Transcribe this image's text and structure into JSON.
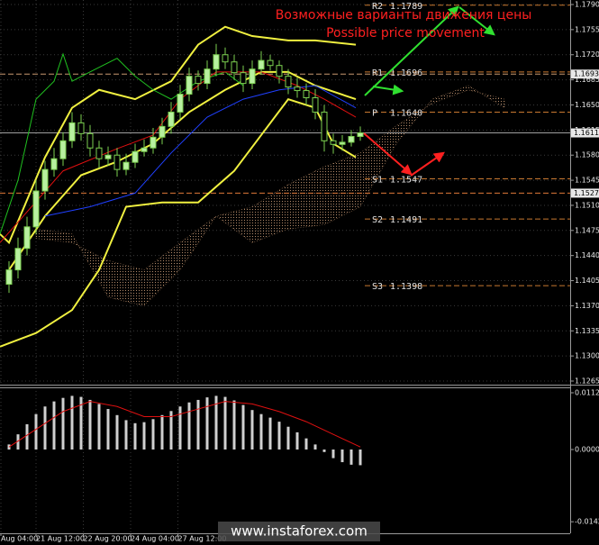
{
  "chart_data": [
    {
      "type": "candlestick",
      "title": "Возможные варианты движения цены",
      "subtitle": "Possible price movement",
      "xlim": [
        -1,
        62.3
      ],
      "ylim": [
        1.12625,
        1.17963
      ],
      "yticks": [
        {
          "value": 1.179,
          "label": "1.1790"
        },
        {
          "value": 1.1755,
          "label": "1.1755"
        },
        {
          "value": 1.172,
          "label": "1.1720"
        },
        {
          "value": 1.1685,
          "label": "1.1685"
        },
        {
          "value": 1.165,
          "label": "1.1650"
        },
        {
          "value": 1.1615,
          "label": "1.1615"
        },
        {
          "value": 1.158,
          "label": "1.1580"
        },
        {
          "value": 1.1545,
          "label": "1.1545"
        },
        {
          "value": 1.151,
          "label": "1.1510"
        },
        {
          "value": 1.1475,
          "label": "1.1475"
        },
        {
          "value": 1.144,
          "label": "1.1440"
        },
        {
          "value": 1.1405,
          "label": "1.1405"
        },
        {
          "value": 1.137,
          "label": "1.1370"
        },
        {
          "value": 1.1335,
          "label": "1.1335"
        },
        {
          "value": 1.13,
          "label": "1.1300"
        },
        {
          "value": 1.1265,
          "label": "1.1265"
        }
      ],
      "grid": true,
      "up_color": "#b8f0a0",
      "down_color": "#000000",
      "wick_color": "#7cd050",
      "open": [
        1.14,
        1.142,
        1.145,
        1.148,
        1.153,
        1.156,
        1.1575,
        1.16,
        1.1625,
        1.161,
        1.159,
        1.1575,
        1.158,
        1.156,
        1.157,
        1.1585,
        1.159,
        1.1605,
        1.162,
        1.164,
        1.1665,
        1.169,
        1.168,
        1.17,
        1.172,
        1.171,
        1.1695,
        1.168,
        1.17,
        1.1712,
        1.1705,
        1.169,
        1.1675,
        1.167,
        1.166,
        1.164,
        1.16,
        1.1595,
        1.1598,
        1.1606
      ],
      "high": [
        1.1432,
        1.1465,
        1.1494,
        1.1545,
        1.1572,
        1.159,
        1.1612,
        1.164,
        1.1637,
        1.1622,
        1.16,
        1.1592,
        1.159,
        1.1582,
        1.1596,
        1.1602,
        1.1618,
        1.1632,
        1.1654,
        1.1678,
        1.1702,
        1.1698,
        1.1712,
        1.1735,
        1.173,
        1.172,
        1.1705,
        1.1712,
        1.1725,
        1.172,
        1.1712,
        1.17,
        1.1688,
        1.168,
        1.1672,
        1.165,
        1.161,
        1.1608,
        1.1615,
        1.162
      ],
      "low": [
        1.1388,
        1.1408,
        1.144,
        1.147,
        1.1518,
        1.155,
        1.1565,
        1.159,
        1.16,
        1.1578,
        1.1562,
        1.1565,
        1.155,
        1.1552,
        1.1562,
        1.1578,
        1.1582,
        1.1595,
        1.161,
        1.163,
        1.1655,
        1.167,
        1.1672,
        1.169,
        1.17,
        1.1685,
        1.1668,
        1.1672,
        1.1692,
        1.1698,
        1.168,
        1.1665,
        1.166,
        1.165,
        1.163,
        1.1585,
        1.1582,
        1.1586,
        1.1592,
        1.16
      ],
      "close": [
        1.142,
        1.145,
        1.148,
        1.153,
        1.156,
        1.1575,
        1.16,
        1.1625,
        1.161,
        1.159,
        1.1575,
        1.158,
        1.156,
        1.157,
        1.1585,
        1.159,
        1.1605,
        1.162,
        1.164,
        1.1665,
        1.169,
        1.168,
        1.17,
        1.172,
        1.171,
        1.1695,
        1.168,
        1.17,
        1.1712,
        1.1705,
        1.169,
        1.1675,
        1.167,
        1.166,
        1.164,
        1.16,
        1.1595,
        1.1598,
        1.1606,
        1.1611
      ],
      "cloud": {
        "color": "#a07858",
        "x": [
          3,
          7,
          11,
          15,
          19,
          23,
          27,
          31,
          35,
          39,
          43,
          47,
          51,
          55
        ],
        "span_a": [
          1.1464,
          1.1458,
          1.1433,
          1.142,
          1.1458,
          1.1495,
          1.1508,
          1.1539,
          1.1564,
          1.1583,
          1.1621,
          1.1652,
          1.1671,
          1.1658
        ],
        "span_b": [
          1.1477,
          1.147,
          1.1382,
          1.137,
          1.142,
          1.1495,
          1.1458,
          1.1477,
          1.1483,
          1.1508,
          1.1596,
          1.1658,
          1.1677,
          1.1646
        ]
      },
      "series": [
        {
          "color": "#f0f040",
          "width": 2,
          "x": [
            -1,
            0,
            4,
            7,
            10,
            14,
            18,
            21,
            24,
            27,
            31,
            34,
            38.5
          ],
          "values": [
            1.147,
            1.1458,
            1.1577,
            1.1646,
            1.1671,
            1.1658,
            1.1683,
            1.1734,
            1.1759,
            1.1746,
            1.174,
            1.174,
            1.1734
          ]
        },
        {
          "color": "#f0f040",
          "width": 2,
          "x": [
            0,
            4,
            8,
            12,
            16,
            20,
            24,
            28,
            31,
            34,
            38.5
          ],
          "values": [
            1.142,
            1.1495,
            1.1552,
            1.1571,
            1.1596,
            1.164,
            1.1671,
            1.1696,
            1.1696,
            1.1677,
            1.1658
          ]
        },
        {
          "color": "#f0f040",
          "width": 2,
          "x": [
            -1,
            3,
            7,
            10,
            13,
            17,
            21,
            25,
            28,
            31,
            34,
            36,
            38.5
          ],
          "values": [
            1.1313,
            1.1332,
            1.1364,
            1.142,
            1.1508,
            1.1514,
            1.1514,
            1.1558,
            1.1608,
            1.1658,
            1.1646,
            1.1596,
            1.1577
          ]
        },
        {
          "color": "#20c020",
          "width": 1,
          "x": [
            -1,
            1,
            3,
            5,
            6,
            7,
            9,
            12,
            14,
            16,
            18,
            21,
            24,
            26
          ],
          "values": [
            1.147,
            1.1545,
            1.1658,
            1.1683,
            1.1721,
            1.1683,
            1.1696,
            1.1715,
            1.169,
            1.1671,
            1.1658,
            1.1683,
            1.1696,
            1.1677
          ]
        },
        {
          "color": "#e01010",
          "width": 1,
          "x": [
            -1,
            6,
            12,
            16,
            19,
            23,
            28,
            32,
            35,
            38.5
          ],
          "values": [
            1.1458,
            1.1558,
            1.1589,
            1.1608,
            1.1658,
            1.1696,
            1.1696,
            1.1677,
            1.1658,
            1.1633
          ]
        },
        {
          "color": "#2040ff",
          "width": 1,
          "x": [
            4,
            9,
            14,
            18,
            22,
            26,
            30,
            34,
            38.5
          ],
          "values": [
            1.1495,
            1.1508,
            1.1527,
            1.1583,
            1.1633,
            1.1658,
            1.1671,
            1.1677,
            1.1646
          ]
        }
      ],
      "level_color": "#c87830",
      "levels": [
        {
          "name": "R2",
          "value": 1.1789
        },
        {
          "name": "R1",
          "value": 1.1696
        },
        {
          "name": "P",
          "value": 1.164,
          "label": "1.1640"
        },
        {
          "name": "S1",
          "value": 1.1547
        },
        {
          "name": "S2",
          "value": 1.1491
        },
        {
          "name": "S3",
          "value": 1.1398
        }
      ],
      "price_markers": [
        {
          "value": 1.1693,
          "color": "#c89870"
        },
        {
          "value": 1.1611,
          "color": "#a0a0a0"
        },
        {
          "value": 1.1527,
          "color": "#e07838"
        }
      ]
    },
    {
      "type": "histogram-macd",
      "xlim": [
        -1,
        62.3
      ],
      "ylim": [
        -0.01655,
        0.01228
      ],
      "yticks": [
        0.01121,
        {
          "value": 0,
          "label": "0.00000"
        },
        -0.01427
      ],
      "xticks": [
        {
          "value": -0.9,
          "label": "Aug 04:00"
        },
        {
          "value": 3,
          "label": "21 Aug 12:00"
        },
        {
          "value": 8.25,
          "label": "22 Aug 20:00"
        },
        {
          "value": 13.5,
          "label": "24 Aug 04:00"
        },
        {
          "value": 18.75,
          "label": "27 Aug 12:00"
        }
      ],
      "color": "#d0d0d0",
      "values": [
        0.001,
        0.003,
        0.005,
        0.007,
        0.0085,
        0.0095,
        0.0102,
        0.0106,
        0.0104,
        0.0098,
        0.009,
        0.008,
        0.0068,
        0.0058,
        0.0052,
        0.0054,
        0.006,
        0.0068,
        0.0076,
        0.0085,
        0.0093,
        0.0098,
        0.0103,
        0.0106,
        0.0104,
        0.0097,
        0.0088,
        0.0078,
        0.007,
        0.0063,
        0.0055,
        0.0045,
        0.0034,
        0.0022,
        0.001,
        -0.0005,
        -0.0017,
        -0.0025,
        -0.003,
        -0.0031
      ],
      "signal": {
        "color": "#e01010",
        "x": [
          0,
          3,
          6,
          9,
          12,
          15,
          18,
          21,
          24,
          27,
          30,
          33,
          36,
          39
        ],
        "values": [
          0.0005,
          0.004,
          0.0075,
          0.0095,
          0.0085,
          0.0065,
          0.0065,
          0.008,
          0.0095,
          0.009,
          0.0075,
          0.0055,
          0.003,
          0.0005
        ]
      }
    }
  ],
  "watermark": "www.instaforex.com"
}
